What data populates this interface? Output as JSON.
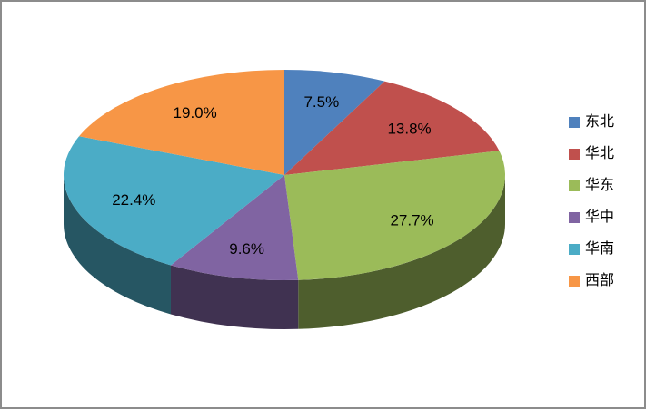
{
  "window": {
    "background": "#FFFFFF",
    "border_color": "#8C8C8C"
  },
  "chart_data": {
    "type": "pie",
    "projection": "3d",
    "title": "",
    "categories": [
      "东北",
      "华北",
      "华东",
      "华中",
      "华南",
      "西部"
    ],
    "values": [
      7.5,
      13.8,
      27.7,
      9.6,
      22.4,
      19.0
    ],
    "data_labels": [
      "7.5%",
      "13.8%",
      "27.7%",
      "9.6%",
      "22.4%",
      "19.0%"
    ],
    "colors": [
      "#4F81BD",
      "#C0504D",
      "#9BBB59",
      "#8064A2",
      "#4BACC6",
      "#F79646"
    ],
    "data_label_color": "#000000",
    "legend_position": "right",
    "start_angle_deg": 0,
    "direction": "clockwise",
    "grid": false
  }
}
